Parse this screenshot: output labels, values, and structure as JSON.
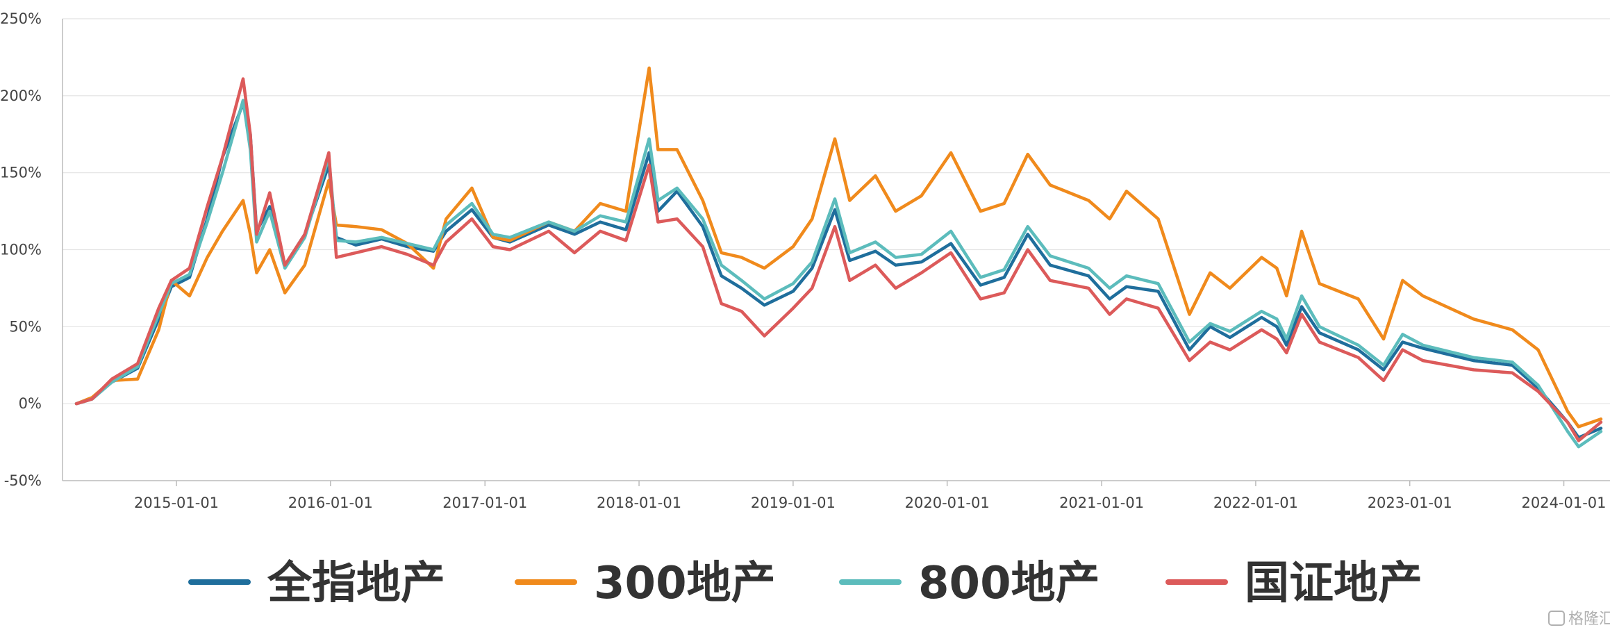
{
  "chart_data": {
    "type": "line",
    "title": "",
    "xlabel": "",
    "ylabel": "",
    "ylim": [
      -50,
      250
    ],
    "y_ticks": [
      -50,
      0,
      50,
      100,
      150,
      200,
      250
    ],
    "y_tick_labels": [
      "-50%",
      "0%",
      "50%",
      "100%",
      "150%",
      "200%",
      "250%"
    ],
    "x_range": [
      "2014-05-09",
      "2024-03-29"
    ],
    "x_tick_labels": [
      "2015-01-01",
      "2016-01-01",
      "2017-01-01",
      "2018-01-01",
      "2019-01-01",
      "2020-01-01",
      "2021-01-01",
      "2022-01-01",
      "2023-01-01",
      "2024-01-01"
    ],
    "grid": "horizontal",
    "legend_position": "bottom",
    "series": [
      {
        "name": "全指地产",
        "color": "#1f6e9c",
        "points": [
          [
            "2014-05-09",
            0
          ],
          [
            "2014-06-15",
            3
          ],
          [
            "2014-08-01",
            14
          ],
          [
            "2014-10-01",
            23
          ],
          [
            "2014-11-20",
            55
          ],
          [
            "2014-12-20",
            76
          ],
          [
            "2015-02-01",
            82
          ],
          [
            "2015-03-15",
            120
          ],
          [
            "2015-04-20",
            160
          ],
          [
            "2015-06-08",
            195
          ],
          [
            "2015-06-25",
            175
          ],
          [
            "2015-07-10",
            112
          ],
          [
            "2015-08-10",
            128
          ],
          [
            "2015-09-15",
            90
          ],
          [
            "2015-11-01",
            110
          ],
          [
            "2015-12-28",
            155
          ],
          [
            "2016-01-15",
            108
          ],
          [
            "2016-03-01",
            103
          ],
          [
            "2016-05-01",
            107
          ],
          [
            "2016-07-01",
            102
          ],
          [
            "2016-09-01",
            99
          ],
          [
            "2016-10-01",
            112
          ],
          [
            "2016-12-01",
            126
          ],
          [
            "2017-01-20",
            108
          ],
          [
            "2017-03-01",
            105
          ],
          [
            "2017-06-01",
            116
          ],
          [
            "2017-08-01",
            110
          ],
          [
            "2017-10-01",
            118
          ],
          [
            "2017-12-01",
            113
          ],
          [
            "2018-01-25",
            163
          ],
          [
            "2018-02-15",
            125
          ],
          [
            "2018-04-01",
            138
          ],
          [
            "2018-06-01",
            115
          ],
          [
            "2018-07-15",
            83
          ],
          [
            "2018-09-01",
            75
          ],
          [
            "2018-10-25",
            64
          ],
          [
            "2019-01-01",
            73
          ],
          [
            "2019-02-15",
            88
          ],
          [
            "2019-04-10",
            126
          ],
          [
            "2019-05-15",
            93
          ],
          [
            "2019-07-15",
            99
          ],
          [
            "2019-09-01",
            90
          ],
          [
            "2019-11-01",
            92
          ],
          [
            "2020-01-10",
            104
          ],
          [
            "2020-03-20",
            77
          ],
          [
            "2020-05-15",
            82
          ],
          [
            "2020-07-10",
            110
          ],
          [
            "2020-09-01",
            90
          ],
          [
            "2020-12-01",
            83
          ],
          [
            "2021-01-20",
            68
          ],
          [
            "2021-03-01",
            76
          ],
          [
            "2021-05-15",
            73
          ],
          [
            "2021-07-28",
            35
          ],
          [
            "2021-09-15",
            50
          ],
          [
            "2021-11-01",
            43
          ],
          [
            "2022-01-15",
            56
          ],
          [
            "2022-02-20",
            50
          ],
          [
            "2022-03-15",
            38
          ],
          [
            "2022-04-20",
            63
          ],
          [
            "2022-06-01",
            46
          ],
          [
            "2022-09-01",
            35
          ],
          [
            "2022-10-31",
            22
          ],
          [
            "2022-12-15",
            40
          ],
          [
            "2023-02-01",
            36
          ],
          [
            "2023-06-01",
            28
          ],
          [
            "2023-09-01",
            25
          ],
          [
            "2023-11-01",
            10
          ],
          [
            "2024-01-10",
            -12
          ],
          [
            "2024-02-05",
            -22
          ],
          [
            "2024-03-29",
            -16
          ]
        ]
      },
      {
        "name": "300地产",
        "color": "#f08a1c",
        "points": [
          [
            "2014-05-09",
            0
          ],
          [
            "2014-06-15",
            4
          ],
          [
            "2014-08-01",
            15
          ],
          [
            "2014-10-01",
            16
          ],
          [
            "2014-11-20",
            48
          ],
          [
            "2014-12-20",
            80
          ],
          [
            "2015-02-01",
            70
          ],
          [
            "2015-03-15",
            95
          ],
          [
            "2015-04-20",
            112
          ],
          [
            "2015-06-08",
            132
          ],
          [
            "2015-06-25",
            110
          ],
          [
            "2015-07-10",
            85
          ],
          [
            "2015-08-10",
            100
          ],
          [
            "2015-09-15",
            72
          ],
          [
            "2015-11-01",
            90
          ],
          [
            "2015-12-28",
            145
          ],
          [
            "2016-01-15",
            116
          ],
          [
            "2016-03-01",
            115
          ],
          [
            "2016-05-01",
            113
          ],
          [
            "2016-07-01",
            104
          ],
          [
            "2016-09-01",
            88
          ],
          [
            "2016-10-01",
            120
          ],
          [
            "2016-12-01",
            140
          ],
          [
            "2017-01-20",
            108
          ],
          [
            "2017-03-01",
            106
          ],
          [
            "2017-06-01",
            118
          ],
          [
            "2017-08-01",
            112
          ],
          [
            "2017-10-01",
            130
          ],
          [
            "2017-12-01",
            125
          ],
          [
            "2018-01-25",
            218
          ],
          [
            "2018-02-15",
            165
          ],
          [
            "2018-04-01",
            165
          ],
          [
            "2018-06-01",
            132
          ],
          [
            "2018-07-15",
            98
          ],
          [
            "2018-09-01",
            95
          ],
          [
            "2018-10-25",
            88
          ],
          [
            "2019-01-01",
            102
          ],
          [
            "2019-02-15",
            120
          ],
          [
            "2019-04-10",
            172
          ],
          [
            "2019-05-15",
            132
          ],
          [
            "2019-07-15",
            148
          ],
          [
            "2019-09-01",
            125
          ],
          [
            "2019-11-01",
            135
          ],
          [
            "2020-01-10",
            163
          ],
          [
            "2020-03-20",
            125
          ],
          [
            "2020-05-15",
            130
          ],
          [
            "2020-07-10",
            162
          ],
          [
            "2020-09-01",
            142
          ],
          [
            "2020-12-01",
            132
          ],
          [
            "2021-01-20",
            120
          ],
          [
            "2021-03-01",
            138
          ],
          [
            "2021-05-15",
            120
          ],
          [
            "2021-07-28",
            58
          ],
          [
            "2021-09-15",
            85
          ],
          [
            "2021-11-01",
            75
          ],
          [
            "2022-01-15",
            95
          ],
          [
            "2022-02-20",
            88
          ],
          [
            "2022-03-15",
            70
          ],
          [
            "2022-04-20",
            112
          ],
          [
            "2022-06-01",
            78
          ],
          [
            "2022-09-01",
            68
          ],
          [
            "2022-10-31",
            42
          ],
          [
            "2022-12-15",
            80
          ],
          [
            "2023-02-01",
            70
          ],
          [
            "2023-06-01",
            55
          ],
          [
            "2023-09-01",
            48
          ],
          [
            "2023-11-01",
            35
          ],
          [
            "2024-01-10",
            -5
          ],
          [
            "2024-02-05",
            -15
          ],
          [
            "2024-03-29",
            -10
          ]
        ]
      },
      {
        "name": "800地产",
        "color": "#5cbcbc",
        "points": [
          [
            "2014-05-09",
            0
          ],
          [
            "2014-06-15",
            3
          ],
          [
            "2014-08-01",
            14
          ],
          [
            "2014-10-01",
            24
          ],
          [
            "2014-11-20",
            58
          ],
          [
            "2014-12-20",
            78
          ],
          [
            "2015-02-01",
            84
          ],
          [
            "2015-03-15",
            118
          ],
          [
            "2015-04-20",
            150
          ],
          [
            "2015-06-08",
            197
          ],
          [
            "2015-06-25",
            165
          ],
          [
            "2015-07-10",
            105
          ],
          [
            "2015-08-10",
            125
          ],
          [
            "2015-09-15",
            88
          ],
          [
            "2015-11-01",
            108
          ],
          [
            "2015-12-28",
            160
          ],
          [
            "2016-01-15",
            106
          ],
          [
            "2016-03-01",
            105
          ],
          [
            "2016-05-01",
            108
          ],
          [
            "2016-07-01",
            104
          ],
          [
            "2016-09-01",
            100
          ],
          [
            "2016-10-01",
            116
          ],
          [
            "2016-12-01",
            130
          ],
          [
            "2017-01-20",
            110
          ],
          [
            "2017-03-01",
            108
          ],
          [
            "2017-06-01",
            118
          ],
          [
            "2017-08-01",
            112
          ],
          [
            "2017-10-01",
            122
          ],
          [
            "2017-12-01",
            118
          ],
          [
            "2018-01-25",
            172
          ],
          [
            "2018-02-15",
            132
          ],
          [
            "2018-04-01",
            140
          ],
          [
            "2018-06-01",
            120
          ],
          [
            "2018-07-15",
            90
          ],
          [
            "2018-09-01",
            80
          ],
          [
            "2018-10-25",
            68
          ],
          [
            "2019-01-01",
            78
          ],
          [
            "2019-02-15",
            92
          ],
          [
            "2019-04-10",
            133
          ],
          [
            "2019-05-15",
            98
          ],
          [
            "2019-07-15",
            105
          ],
          [
            "2019-09-01",
            95
          ],
          [
            "2019-11-01",
            97
          ],
          [
            "2020-01-10",
            112
          ],
          [
            "2020-03-20",
            82
          ],
          [
            "2020-05-15",
            87
          ],
          [
            "2020-07-10",
            115
          ],
          [
            "2020-09-01",
            96
          ],
          [
            "2020-12-01",
            88
          ],
          [
            "2021-01-20",
            75
          ],
          [
            "2021-03-01",
            83
          ],
          [
            "2021-05-15",
            78
          ],
          [
            "2021-07-28",
            40
          ],
          [
            "2021-09-15",
            52
          ],
          [
            "2021-11-01",
            47
          ],
          [
            "2022-01-15",
            60
          ],
          [
            "2022-02-20",
            55
          ],
          [
            "2022-03-15",
            42
          ],
          [
            "2022-04-20",
            70
          ],
          [
            "2022-06-01",
            50
          ],
          [
            "2022-09-01",
            38
          ],
          [
            "2022-10-31",
            25
          ],
          [
            "2022-12-15",
            45
          ],
          [
            "2023-02-01",
            38
          ],
          [
            "2023-06-01",
            30
          ],
          [
            "2023-09-01",
            27
          ],
          [
            "2023-11-01",
            12
          ],
          [
            "2024-01-10",
            -18
          ],
          [
            "2024-02-05",
            -28
          ],
          [
            "2024-03-29",
            -18
          ]
        ]
      },
      {
        "name": "国证地产",
        "color": "#dc5a5a",
        "points": [
          [
            "2014-05-09",
            0
          ],
          [
            "2014-06-15",
            3
          ],
          [
            "2014-08-01",
            16
          ],
          [
            "2014-10-01",
            26
          ],
          [
            "2014-11-20",
            62
          ],
          [
            "2014-12-20",
            80
          ],
          [
            "2015-02-01",
            88
          ],
          [
            "2015-03-15",
            128
          ],
          [
            "2015-04-20",
            160
          ],
          [
            "2015-06-08",
            211
          ],
          [
            "2015-06-25",
            175
          ],
          [
            "2015-07-10",
            110
          ],
          [
            "2015-08-10",
            137
          ],
          [
            "2015-09-15",
            90
          ],
          [
            "2015-11-01",
            110
          ],
          [
            "2015-12-28",
            163
          ],
          [
            "2016-01-15",
            95
          ],
          [
            "2016-03-01",
            98
          ],
          [
            "2016-05-01",
            102
          ],
          [
            "2016-07-01",
            97
          ],
          [
            "2016-09-01",
            90
          ],
          [
            "2016-10-01",
            105
          ],
          [
            "2016-12-01",
            120
          ],
          [
            "2017-01-20",
            102
          ],
          [
            "2017-03-01",
            100
          ],
          [
            "2017-06-01",
            112
          ],
          [
            "2017-08-01",
            98
          ],
          [
            "2017-10-01",
            112
          ],
          [
            "2017-12-01",
            106
          ],
          [
            "2018-01-25",
            155
          ],
          [
            "2018-02-15",
            118
          ],
          [
            "2018-04-01",
            120
          ],
          [
            "2018-06-01",
            102
          ],
          [
            "2018-07-15",
            65
          ],
          [
            "2018-09-01",
            60
          ],
          [
            "2018-10-25",
            44
          ],
          [
            "2019-01-01",
            62
          ],
          [
            "2019-02-15",
            75
          ],
          [
            "2019-04-10",
            115
          ],
          [
            "2019-05-15",
            80
          ],
          [
            "2019-07-15",
            90
          ],
          [
            "2019-09-01",
            75
          ],
          [
            "2019-11-01",
            85
          ],
          [
            "2020-01-10",
            98
          ],
          [
            "2020-03-20",
            68
          ],
          [
            "2020-05-15",
            72
          ],
          [
            "2020-07-10",
            100
          ],
          [
            "2020-09-01",
            80
          ],
          [
            "2020-12-01",
            75
          ],
          [
            "2021-01-20",
            58
          ],
          [
            "2021-03-01",
            68
          ],
          [
            "2021-05-15",
            62
          ],
          [
            "2021-07-28",
            28
          ],
          [
            "2021-09-15",
            40
          ],
          [
            "2021-11-01",
            35
          ],
          [
            "2022-01-15",
            48
          ],
          [
            "2022-02-20",
            42
          ],
          [
            "2022-03-15",
            33
          ],
          [
            "2022-04-20",
            58
          ],
          [
            "2022-06-01",
            40
          ],
          [
            "2022-09-01",
            30
          ],
          [
            "2022-10-31",
            15
          ],
          [
            "2022-12-15",
            35
          ],
          [
            "2023-02-01",
            28
          ],
          [
            "2023-06-01",
            22
          ],
          [
            "2023-09-01",
            20
          ],
          [
            "2023-11-01",
            8
          ],
          [
            "2024-01-10",
            -12
          ],
          [
            "2024-02-05",
            -24
          ],
          [
            "2024-03-29",
            -12
          ]
        ]
      }
    ]
  },
  "watermark": {
    "logo_text": "格隆汇"
  }
}
